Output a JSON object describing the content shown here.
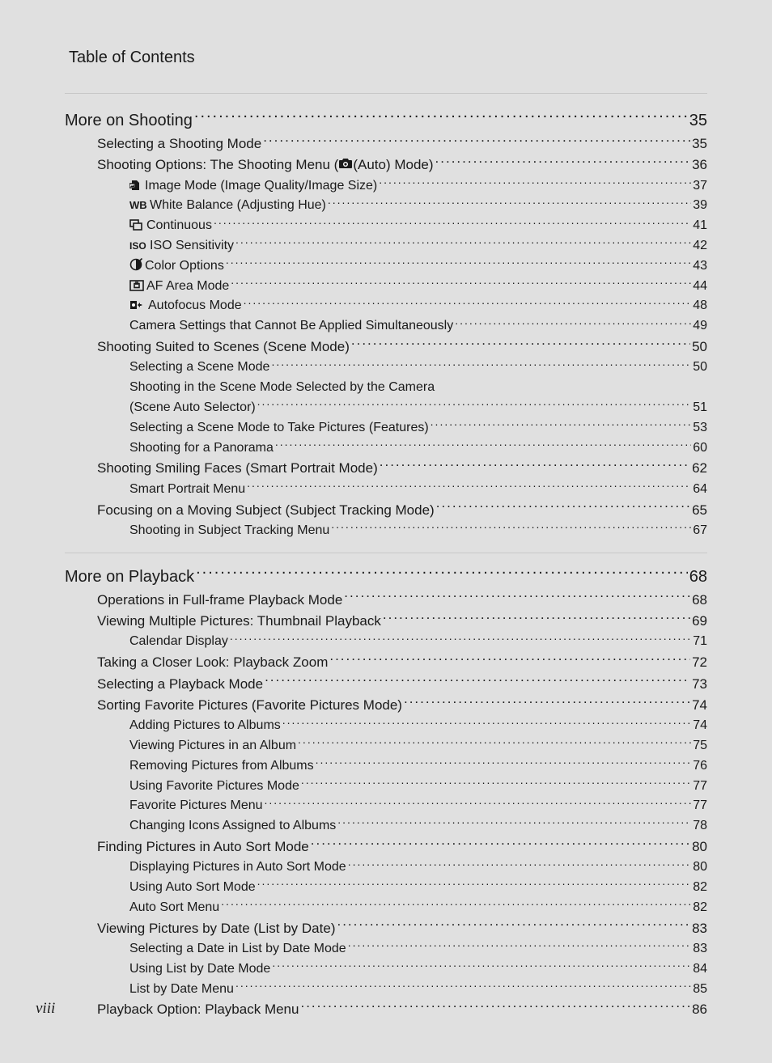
{
  "header": "Table of Contents",
  "footer_page": "viii",
  "colors": {
    "background": "#e0e0e0",
    "text": "#1a1a1a",
    "rule": "#c8c8c8"
  },
  "typography": {
    "body_font": "Segoe UI / Helvetica Neue",
    "header_size_pt": 15,
    "lvl0_size_pt": 15,
    "lvl1_size_pt": 13,
    "lvl2_size_pt": 12
  },
  "sections": [
    {
      "title": "More on Shooting",
      "page": "35",
      "entries": [
        {
          "level": 1,
          "label": "Selecting a Shooting Mode",
          "page": "35"
        },
        {
          "level": 1,
          "label_pre": "Shooting Options: The Shooting Menu (",
          "icon": "camera",
          "label_post": " (Auto) Mode)",
          "page": "36"
        },
        {
          "level": 2,
          "icon": "image-mode",
          "label": " Image Mode (Image Quality/Image Size)",
          "page": "37"
        },
        {
          "level": 2,
          "icon": "wb",
          "label": " White Balance (Adjusting Hue)",
          "page": "39"
        },
        {
          "level": 2,
          "icon": "continuous",
          "label": " Continuous",
          "page": "41"
        },
        {
          "level": 2,
          "icon": "iso",
          "label": " ISO Sensitivity",
          "page": "42"
        },
        {
          "level": 2,
          "icon": "color-opts",
          "label": " Color Options",
          "page": "43"
        },
        {
          "level": 2,
          "icon": "af-area",
          "label": " AF Area Mode",
          "page": "44"
        },
        {
          "level": 2,
          "icon": "autofocus",
          "label": " Autofocus Mode",
          "page": "48"
        },
        {
          "level": 2,
          "label": "Camera Settings that Cannot Be Applied Simultaneously",
          "page": "49"
        },
        {
          "level": 1,
          "label": "Shooting Suited to Scenes (Scene Mode)",
          "page": "50"
        },
        {
          "level": 2,
          "label": "Selecting a Scene Mode",
          "page": "50"
        },
        {
          "level": 2,
          "label": "Shooting in the Scene Mode Selected by the Camera (Scene Auto Selector)",
          "page": "51",
          "twoLine": true,
          "line1": "Shooting in the Scene Mode Selected by the Camera",
          "line2": "(Scene Auto Selector)"
        },
        {
          "level": 2,
          "label": "Selecting a Scene Mode to Take Pictures (Features)",
          "page": "53"
        },
        {
          "level": 2,
          "label": "Shooting for a Panorama",
          "page": "60"
        },
        {
          "level": 1,
          "label": "Shooting Smiling Faces (Smart Portrait Mode)",
          "page": "62"
        },
        {
          "level": 2,
          "label": "Smart Portrait Menu",
          "page": "64"
        },
        {
          "level": 1,
          "label": "Focusing on a Moving Subject (Subject Tracking Mode)",
          "page": "65"
        },
        {
          "level": 2,
          "label": "Shooting in Subject Tracking Menu",
          "page": "67"
        }
      ]
    },
    {
      "title": "More on Playback",
      "page": "68",
      "entries": [
        {
          "level": 1,
          "label": "Operations in Full-frame Playback Mode",
          "page": "68"
        },
        {
          "level": 1,
          "label": "Viewing Multiple Pictures: Thumbnail Playback",
          "page": "69"
        },
        {
          "level": 2,
          "label": "Calendar Display",
          "page": "71"
        },
        {
          "level": 1,
          "label": "Taking a Closer Look: Playback Zoom",
          "page": "72"
        },
        {
          "level": 1,
          "label": "Selecting a Playback Mode",
          "page": "73"
        },
        {
          "level": 1,
          "label": "Sorting Favorite Pictures (Favorite Pictures Mode)",
          "page": "74"
        },
        {
          "level": 2,
          "label": "Adding Pictures to Albums",
          "page": "74"
        },
        {
          "level": 2,
          "label": "Viewing Pictures in an Album",
          "page": "75"
        },
        {
          "level": 2,
          "label": "Removing Pictures from Albums",
          "page": "76"
        },
        {
          "level": 2,
          "label": "Using Favorite Pictures Mode",
          "page": "77"
        },
        {
          "level": 2,
          "label": "Favorite Pictures Menu",
          "page": "77"
        },
        {
          "level": 2,
          "label": "Changing Icons Assigned to Albums",
          "page": "78"
        },
        {
          "level": 1,
          "label": "Finding Pictures in Auto Sort Mode",
          "page": "80"
        },
        {
          "level": 2,
          "label": "Displaying Pictures in Auto Sort Mode",
          "page": "80"
        },
        {
          "level": 2,
          "label": "Using Auto Sort Mode",
          "page": "82"
        },
        {
          "level": 2,
          "label": "Auto Sort Menu",
          "page": "82"
        },
        {
          "level": 1,
          "label": "Viewing Pictures by Date (List by Date)",
          "page": "83"
        },
        {
          "level": 2,
          "label": "Selecting a Date in List by Date Mode",
          "page": "83"
        },
        {
          "level": 2,
          "label": "Using List by Date Mode",
          "page": "84"
        },
        {
          "level": 2,
          "label": "List by Date Menu",
          "page": "85"
        },
        {
          "level": 1,
          "label": "Playback Option: Playback Menu",
          "page": "86"
        }
      ]
    }
  ]
}
